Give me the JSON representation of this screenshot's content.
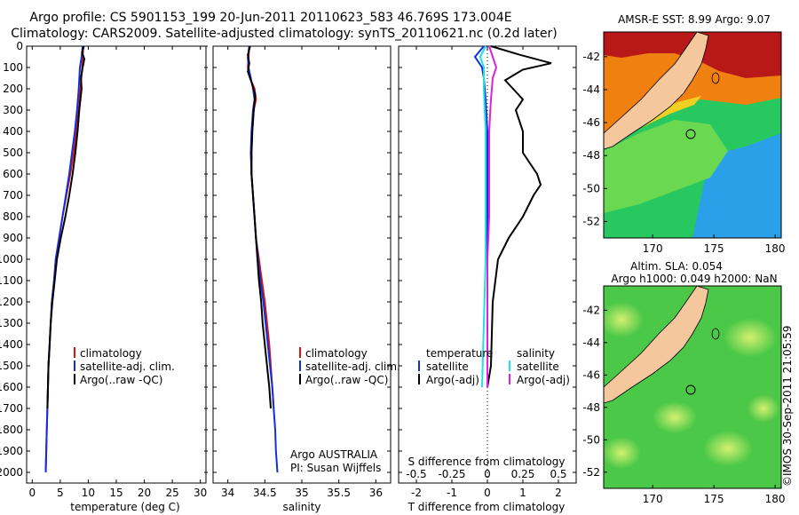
{
  "header": {
    "title_line1": "Argo profile: CS 5901153_199 20-Jun-2011 20110623_583 46.769S 173.004E",
    "title_line2": "Climatology: CARS2009. Satellite-adjusted climatology: synTS_20110621.nc (0.2d later)"
  },
  "colors": {
    "climatology": "#e01010",
    "satellite_adj": "#1030e0",
    "argo": "#000000",
    "salinity_satellite": "#20e0e0",
    "salinity_argo": "#e020e0",
    "land": "#f5c79c"
  },
  "chart_data": [
    {
      "type": "line",
      "id": "temperature_profile",
      "xlabel": "temperature (deg C)",
      "ylabel": "",
      "xlim": [
        -1,
        31
      ],
      "ylim": [
        2050,
        0
      ],
      "xticks": [
        0,
        5,
        10,
        15,
        20,
        25,
        30
      ],
      "yticks": [
        0,
        100,
        200,
        300,
        400,
        500,
        600,
        700,
        800,
        900,
        1000,
        1100,
        1200,
        1300,
        1400,
        1500,
        1600,
        1700,
        1800,
        1900,
        2000
      ],
      "legend": [
        "climatology",
        "satellite-adj. clim.",
        "Argo(..raw -QC)"
      ],
      "legend_position": "lower-center",
      "series": [
        {
          "name": "climatology",
          "color": "#e01010",
          "points": [
            [
              9.1,
              0
            ],
            [
              9.0,
              50
            ],
            [
              8.9,
              100
            ],
            [
              8.6,
              200
            ],
            [
              8.3,
              300
            ],
            [
              7.9,
              400
            ],
            [
              7.4,
              500
            ],
            [
              6.8,
              600
            ],
            [
              6.1,
              700
            ],
            [
              5.4,
              800
            ],
            [
              4.8,
              900
            ],
            [
              4.2,
              1000
            ],
            [
              3.9,
              1100
            ],
            [
              3.5,
              1200
            ],
            [
              3.3,
              1300
            ],
            [
              3.1,
              1400
            ],
            [
              2.9,
              1500
            ],
            [
              2.8,
              1600
            ],
            [
              2.7,
              1700
            ],
            [
              2.6,
              1800
            ],
            [
              2.5,
              1900
            ],
            [
              2.4,
              2000
            ]
          ]
        },
        {
          "name": "satellite-adj. clim.",
          "color": "#1030e0",
          "points": [
            [
              9.0,
              0
            ],
            [
              8.8,
              50
            ],
            [
              8.5,
              100
            ],
            [
              8.3,
              200
            ],
            [
              8.0,
              300
            ],
            [
              7.6,
              400
            ],
            [
              7.1,
              500
            ],
            [
              6.6,
              600
            ],
            [
              6.0,
              700
            ],
            [
              5.4,
              800
            ],
            [
              4.8,
              900
            ],
            [
              4.2,
              1000
            ],
            [
              3.9,
              1100
            ],
            [
              3.5,
              1200
            ],
            [
              3.3,
              1300
            ],
            [
              3.1,
              1400
            ],
            [
              2.9,
              1500
            ],
            [
              2.8,
              1600
            ],
            [
              2.7,
              1700
            ],
            [
              2.6,
              1800
            ],
            [
              2.5,
              1900
            ],
            [
              2.4,
              2000
            ]
          ]
        },
        {
          "name": "Argo(..raw -QC)",
          "color": "#000000",
          "points": [
            [
              9.2,
              0
            ],
            [
              8.9,
              30
            ],
            [
              9.3,
              60
            ],
            [
              9.0,
              100
            ],
            [
              8.7,
              150
            ],
            [
              8.8,
              200
            ],
            [
              8.4,
              300
            ],
            [
              8.1,
              400
            ],
            [
              7.7,
              500
            ],
            [
              7.2,
              600
            ],
            [
              6.6,
              700
            ],
            [
              5.9,
              800
            ],
            [
              5.1,
              900
            ],
            [
              4.4,
              1000
            ],
            [
              4.0,
              1100
            ],
            [
              3.6,
              1200
            ],
            [
              3.3,
              1300
            ],
            [
              3.1,
              1400
            ],
            [
              2.9,
              1500
            ],
            [
              2.8,
              1600
            ],
            [
              2.7,
              1700
            ]
          ]
        }
      ]
    },
    {
      "type": "line",
      "id": "salinity_profile",
      "xlabel": "salinity",
      "ylabel": "",
      "xlim": [
        33.8,
        36.2
      ],
      "ylim": [
        2050,
        0
      ],
      "xticks": [
        34,
        34.5,
        35,
        35.5,
        36
      ],
      "legend": [
        "climatology",
        "satellite-adj. clim.",
        "Argo(..raw -QC)"
      ],
      "legend_position": "lower-center",
      "annotation": {
        "line1": "Argo AUSTRALIA",
        "line2": "PI: Susan Wijffels"
      },
      "series": [
        {
          "name": "climatology",
          "color": "#e01010",
          "points": [
            [
              34.29,
              0
            ],
            [
              34.28,
              50
            ],
            [
              34.27,
              100
            ],
            [
              34.3,
              150
            ],
            [
              34.36,
              200
            ],
            [
              34.38,
              250
            ],
            [
              34.35,
              300
            ],
            [
              34.33,
              400
            ],
            [
              34.32,
              500
            ],
            [
              34.32,
              600
            ],
            [
              34.34,
              700
            ],
            [
              34.36,
              800
            ],
            [
              34.38,
              900
            ],
            [
              34.42,
              1000
            ],
            [
              34.46,
              1100
            ],
            [
              34.5,
              1200
            ],
            [
              34.53,
              1300
            ],
            [
              34.56,
              1400
            ],
            [
              34.58,
              1500
            ],
            [
              34.6,
              1600
            ],
            [
              34.62,
              1700
            ]
          ]
        },
        {
          "name": "satellite-adj. clim.",
          "color": "#1030e0",
          "points": [
            [
              34.29,
              0
            ],
            [
              34.27,
              50
            ],
            [
              34.28,
              100
            ],
            [
              34.31,
              150
            ],
            [
              34.34,
              200
            ],
            [
              34.36,
              250
            ],
            [
              34.34,
              300
            ],
            [
              34.32,
              400
            ],
            [
              34.31,
              500
            ],
            [
              34.32,
              600
            ],
            [
              34.34,
              700
            ],
            [
              34.36,
              800
            ],
            [
              34.38,
              900
            ],
            [
              34.41,
              1000
            ],
            [
              34.44,
              1100
            ],
            [
              34.48,
              1200
            ],
            [
              34.51,
              1300
            ],
            [
              34.54,
              1400
            ],
            [
              34.57,
              1500
            ],
            [
              34.6,
              1600
            ],
            [
              34.62,
              1700
            ],
            [
              34.64,
              1800
            ],
            [
              34.65,
              1900
            ],
            [
              34.67,
              2000
            ]
          ]
        },
        {
          "name": "Argo(..raw -QC)",
          "color": "#000000",
          "points": [
            [
              34.3,
              0
            ],
            [
              34.27,
              40
            ],
            [
              34.29,
              80
            ],
            [
              34.27,
              120
            ],
            [
              34.33,
              180
            ],
            [
              34.37,
              230
            ],
            [
              34.35,
              300
            ],
            [
              34.33,
              400
            ],
            [
              34.32,
              500
            ],
            [
              34.32,
              600
            ],
            [
              34.34,
              700
            ],
            [
              34.36,
              800
            ],
            [
              34.38,
              900
            ],
            [
              34.4,
              1000
            ],
            [
              34.42,
              1100
            ],
            [
              34.45,
              1200
            ],
            [
              34.47,
              1300
            ],
            [
              34.5,
              1400
            ],
            [
              34.53,
              1500
            ],
            [
              34.56,
              1600
            ],
            [
              34.58,
              1700
            ]
          ]
        }
      ]
    },
    {
      "type": "line",
      "id": "difference_profile",
      "xlabel": "T difference from climatology",
      "xlabel_top": "S difference from climatology",
      "xlim": [
        -2.5,
        2.5
      ],
      "ylim": [
        2050,
        0
      ],
      "xticks_T": [
        -2,
        -1,
        0,
        1,
        2
      ],
      "xticks_S": [
        "-0.5",
        "-0.25",
        "0",
        "0.25",
        "0.5"
      ],
      "legend_temperature": {
        "title": "temperature",
        "items": [
          "satellite",
          "Argo(-adj)"
        ]
      },
      "legend_salinity": {
        "title": "salinity",
        "items": [
          "satellite",
          "Argo(-adj)"
        ]
      },
      "series": [
        {
          "name": "satellite",
          "group": "temperature",
          "color": "#1030e0",
          "points": [
            [
              -0.1,
              0
            ],
            [
              -0.35,
              50
            ],
            [
              -0.15,
              100
            ],
            [
              -0.1,
              150
            ],
            [
              -0.05,
              250
            ],
            [
              0,
              400
            ],
            [
              0,
              700
            ],
            [
              0,
              1000
            ],
            [
              0,
              1300
            ],
            [
              0,
              1600
            ]
          ]
        },
        {
          "name": "Argo(-adj)",
          "group": "temperature",
          "color": "#000000",
          "points": [
            [
              0.1,
              0
            ],
            [
              0.9,
              40
            ],
            [
              1.8,
              80
            ],
            [
              1.0,
              110
            ],
            [
              0.5,
              160
            ],
            [
              1.0,
              250
            ],
            [
              0.8,
              300
            ],
            [
              1.0,
              400
            ],
            [
              1.0,
              500
            ],
            [
              1.2,
              550
            ],
            [
              1.4,
              600
            ],
            [
              1.5,
              650
            ],
            [
              1.3,
              700
            ],
            [
              1.0,
              800
            ],
            [
              0.6,
              900
            ],
            [
              0.3,
              1000
            ],
            [
              0.15,
              1200
            ],
            [
              0.1,
              1500
            ],
            [
              0,
              1600
            ]
          ]
        },
        {
          "name": "satellite",
          "group": "salinity",
          "color": "#20e0e0",
          "points": [
            [
              -0.05,
              0
            ],
            [
              -0.2,
              50
            ],
            [
              -0.1,
              100
            ],
            [
              -0.1,
              200
            ],
            [
              -0.05,
              400
            ],
            [
              -0.05,
              700
            ],
            [
              -0.05,
              1000
            ],
            [
              -0.1,
              1300
            ],
            [
              -0.15,
              1600
            ]
          ]
        },
        {
          "name": "Argo(-adj)",
          "group": "salinity",
          "color": "#e020e0",
          "points": [
            [
              0.05,
              0
            ],
            [
              0.15,
              50
            ],
            [
              0.25,
              100
            ],
            [
              0.15,
              150
            ],
            [
              0.1,
              250
            ],
            [
              0.05,
              400
            ],
            [
              0.05,
              600
            ],
            [
              0.05,
              800
            ],
            [
              0,
              1000
            ],
            [
              0,
              1300
            ],
            [
              0,
              1600
            ]
          ]
        }
      ]
    },
    {
      "type": "heatmap",
      "id": "sst_map",
      "title": "AMSR-E SST: 8.99 Argo: 9.07",
      "xticks": [
        170,
        175,
        180
      ],
      "yticks": [
        -42,
        -44,
        -46,
        -48,
        -50,
        -52
      ],
      "xlim": [
        166,
        180.5
      ],
      "ylim": [
        -53,
        -40.5
      ]
    },
    {
      "type": "heatmap",
      "id": "sla_map",
      "title_line1": "Altim. SLA: 0.054",
      "title_line2": "Argo h1000: 0.049 h2000: NaN",
      "xticks": [
        170,
        175,
        180
      ],
      "yticks": [
        -42,
        -44,
        -46,
        -48,
        -50,
        -52
      ],
      "xlim": [
        166,
        180.5
      ],
      "ylim": [
        -53,
        -40.5
      ]
    }
  ],
  "footer": {
    "credit": "©IMOS 30-Sep-2011 21:05:59"
  }
}
